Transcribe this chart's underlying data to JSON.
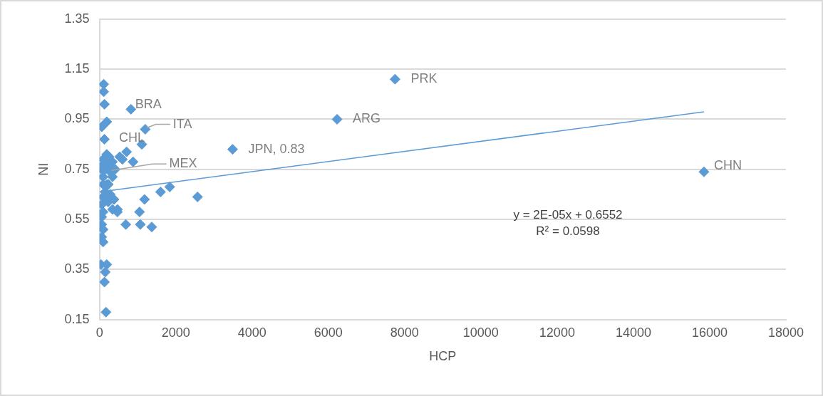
{
  "chart_data": {
    "type": "scatter",
    "xlabel": "HCP",
    "ylabel": "NI",
    "xlim": [
      0,
      18000
    ],
    "xticks": [
      0,
      2000,
      4000,
      6000,
      8000,
      10000,
      12000,
      14000,
      16000,
      18000
    ],
    "ylim": [
      0.15,
      1.35
    ],
    "yticks": [
      0.15,
      0.35,
      0.55,
      0.75,
      0.95,
      1.15,
      1.35
    ],
    "grid": "y",
    "series": [
      {
        "marker": "diamond",
        "color": "#5b9bd5",
        "x": [
          110,
          110,
          130,
          825,
          190,
          60,
          130,
          1200,
          1110,
          710,
          190,
          530,
          880,
          600,
          95,
          340,
          95,
          280,
          1840,
          1600,
          2570,
          1180,
          1050,
          690,
          1070,
          1370,
          470,
          340,
          95,
          40,
          190,
          150,
          130,
          170,
          60,
          95,
          60,
          60,
          95,
          190,
          150,
          95,
          60,
          95,
          60,
          150,
          230,
          280,
          380,
          470,
          230,
          150,
          280,
          410,
          340,
          100,
          200,
          250,
          3490,
          6230,
          7750,
          15850
        ],
        "values": [
          1.09,
          1.06,
          1.01,
          0.99,
          0.94,
          0.92,
          0.87,
          0.91,
          0.85,
          0.82,
          0.81,
          0.8,
          0.78,
          0.79,
          0.79,
          0.78,
          0.72,
          0.74,
          0.68,
          0.66,
          0.64,
          0.63,
          0.58,
          0.53,
          0.53,
          0.52,
          0.58,
          0.59,
          0.46,
          0.37,
          0.37,
          0.34,
          0.3,
          0.18,
          0.53,
          0.51,
          0.48,
          0.75,
          0.69,
          0.69,
          0.66,
          0.64,
          0.61,
          0.58,
          0.56,
          0.63,
          0.62,
          0.65,
          0.63,
          0.59,
          0.69,
          0.75,
          0.76,
          0.75,
          0.72,
          0.77,
          0.78,
          0.8,
          0.83,
          0.95,
          1.11,
          0.74
        ]
      },
      {
        "type": "line",
        "marker": "none",
        "color": "#5b9bd5",
        "x": [
          0,
          15850
        ],
        "values": [
          0.66,
          0.98
        ]
      }
    ],
    "annotations": [
      {
        "text": "BRA",
        "x": 825,
        "y": 0.99
      },
      {
        "text": "ITA",
        "x": 1200,
        "y": 0.91
      },
      {
        "text": "CHL",
        "x": 1110,
        "y": 0.85
      },
      {
        "text": "MEX",
        "x": 280,
        "y": 0.74
      },
      {
        "text": "JPN, 0.83",
        "x": 3490,
        "y": 0.83
      },
      {
        "text": "ARG",
        "x": 6230,
        "y": 0.95
      },
      {
        "text": "PRK",
        "x": 7750,
        "y": 1.11
      },
      {
        "text": "CHN",
        "x": 15850,
        "y": 0.74
      },
      "y = 2E-05x + 0.6552",
      "R² = 0.0598"
    ]
  }
}
